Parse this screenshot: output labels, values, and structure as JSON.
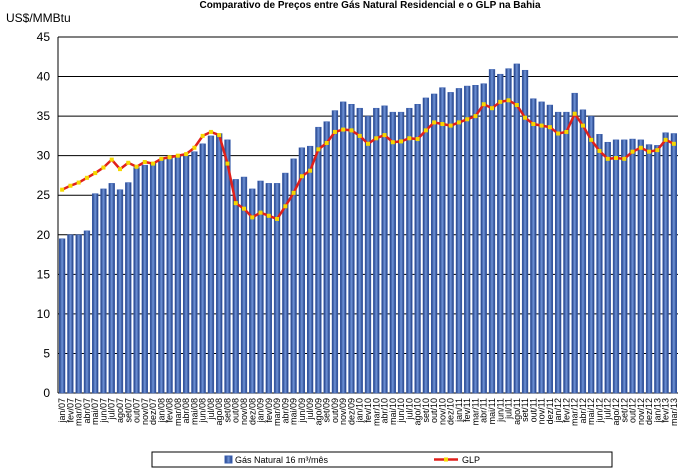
{
  "chart_data": {
    "type": "combo",
    "title": "Comparativo de Preços entre Gás Natural Residencial e o GLP na Bahia",
    "y_label": "US$/MMBtu",
    "categories": [
      "jan/07",
      "fev/07",
      "mar/07",
      "abr/07",
      "mai/07",
      "jun/07",
      "jul/07",
      "ago07",
      "set/07",
      "out/07",
      "nov/07",
      "dez/07",
      "jan/08",
      "fev/08",
      "mar/08",
      "abr/08",
      "mai/08",
      "jun/08",
      "jul/08",
      "ago/08",
      "set/08",
      "out/08",
      "nov/08",
      "dez/08",
      "jan/09",
      "fev/09",
      "mar/09",
      "abr/09",
      "mai/09",
      "jun/09",
      "jul/09",
      "ago/09",
      "set/09",
      "out/09",
      "nov/09",
      "dez/09",
      "jan/10",
      "fev/10",
      "mar/10",
      "abr/10",
      "mai/10",
      "jun/10",
      "jul/10",
      "ago/10",
      "set/10",
      "out/10",
      "nov/10",
      "dez/10",
      "jan/11",
      "fev/11",
      "mar/11",
      "abr/11",
      "mai/11",
      "jun/11",
      "jul/11",
      "ago/11",
      "set/11",
      "out/11",
      "nov/11",
      "dez/11",
      "jan/12",
      "fev/12",
      "mar/12",
      "abr/12",
      "mai/12",
      "jun/12",
      "jul/12",
      "ago/12",
      "set/12",
      "out/12",
      "nov/12",
      "dez/12",
      "jan/13",
      "fev/13",
      "mar/13"
    ],
    "series": [
      {
        "name": "Gás Natural 16 m³/mês",
        "kind": "bar",
        "color": "#3a5fb0",
        "values": [
          19.5,
          20,
          20,
          20.5,
          25.2,
          25.8,
          26.5,
          25.7,
          26.6,
          28.5,
          28.8,
          29,
          29.5,
          29.8,
          30,
          30,
          30.5,
          31.5,
          32.5,
          32.8,
          32,
          27,
          27.3,
          25.8,
          26.8,
          26.5,
          26.5,
          27.8,
          29.6,
          31,
          31.2,
          33.6,
          34.3,
          35.7,
          36.8,
          36.5,
          36,
          35,
          36,
          36.3,
          35.5,
          35.5,
          36,
          36.5,
          37.3,
          37.8,
          38.6,
          38,
          38.5,
          38.8,
          38.9,
          39.1,
          40.9,
          40.3,
          41,
          41.6,
          40.8,
          37.2,
          36.8,
          36.4,
          35.5,
          35.5,
          37.9,
          35.8,
          35,
          32.7,
          31.7,
          32,
          32,
          32.1,
          32,
          31.4,
          31.3,
          32.9,
          32.8
        ]
      },
      {
        "name": "GLP",
        "kind": "line",
        "color": "#e0201b",
        "marker_color": "#f5d800",
        "values": [
          25.7,
          26.2,
          26.6,
          27.2,
          27.8,
          28.5,
          29.5,
          28.3,
          29.1,
          28.6,
          29.2,
          29,
          29.6,
          29.8,
          30,
          30.2,
          31,
          32.5,
          33,
          32.6,
          29,
          24,
          23.3,
          22.2,
          22.8,
          22.4,
          22,
          23.6,
          25.3,
          27.4,
          28.1,
          30.8,
          31.6,
          33,
          33.3,
          33.2,
          32.5,
          31.5,
          32.2,
          32.6,
          31.7,
          31.8,
          32.2,
          32.1,
          33.2,
          34.2,
          34,
          33.8,
          34.2,
          34.6,
          35,
          36.5,
          36,
          36.8,
          37,
          36.4,
          34.8,
          34,
          33.8,
          33.6,
          32.8,
          33,
          35.3,
          33.8,
          32,
          30.6,
          29.6,
          29.7,
          29.6,
          30.5,
          31,
          30.5,
          30.7,
          32,
          31.5
        ]
      }
    ],
    "ylim": [
      0,
      45
    ],
    "yticks": [
      0,
      5,
      10,
      15,
      20,
      25,
      30,
      35,
      40,
      45
    ],
    "grid": true,
    "legend": "bottom"
  }
}
